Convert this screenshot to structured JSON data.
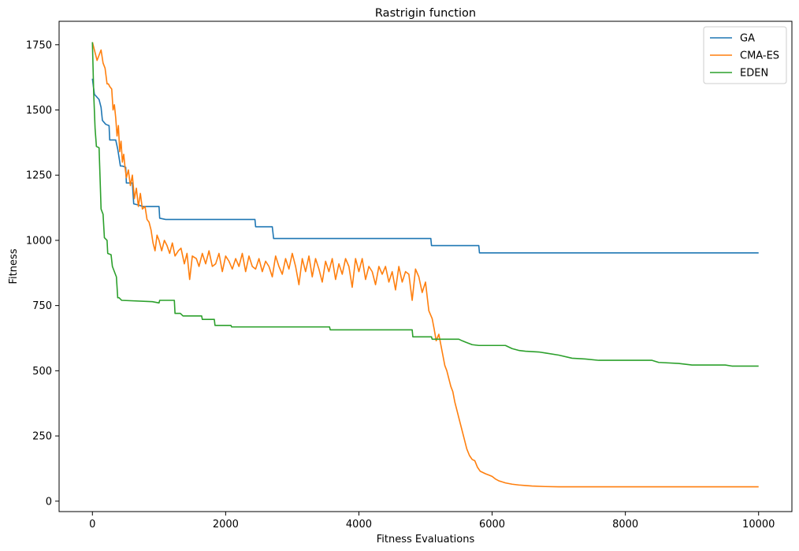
{
  "chart_data": {
    "type": "line",
    "title": "Rastrigin function",
    "xlabel": "Fitness Evaluations",
    "ylabel": "Fitness",
    "xlim": [
      -500,
      10500
    ],
    "ylim": [
      -40,
      1840
    ],
    "xticks": [
      0,
      2000,
      4000,
      6000,
      8000,
      10000
    ],
    "yticks": [
      0,
      250,
      500,
      750,
      1000,
      1250,
      1500,
      1750
    ],
    "grid": false,
    "legend_position": "top-right",
    "series": [
      {
        "name": "GA",
        "color": "#1f77b4",
        "step": true,
        "points": [
          [
            0,
            1620
          ],
          [
            30,
            1560
          ],
          [
            100,
            1540
          ],
          [
            130,
            1510
          ],
          [
            150,
            1460
          ],
          [
            200,
            1445
          ],
          [
            250,
            1440
          ],
          [
            260,
            1385
          ],
          [
            350,
            1385
          ],
          [
            380,
            1350
          ],
          [
            420,
            1285
          ],
          [
            450,
            1285
          ],
          [
            500,
            1280
          ],
          [
            510,
            1220
          ],
          [
            600,
            1220
          ],
          [
            620,
            1140
          ],
          [
            700,
            1135
          ],
          [
            750,
            1130
          ],
          [
            1000,
            1130
          ],
          [
            1010,
            1085
          ],
          [
            1100,
            1080
          ],
          [
            1300,
            1080
          ],
          [
            2440,
            1080
          ],
          [
            2450,
            1052
          ],
          [
            2700,
            1052
          ],
          [
            2720,
            1007
          ],
          [
            5080,
            1007
          ],
          [
            5090,
            980
          ],
          [
            5800,
            980
          ],
          [
            5810,
            952
          ],
          [
            10000,
            952
          ]
        ]
      },
      {
        "name": "CMA-ES",
        "color": "#ff7f0e",
        "step": false,
        "points": [
          [
            0,
            1760
          ],
          [
            40,
            1720
          ],
          [
            70,
            1690
          ],
          [
            100,
            1710
          ],
          [
            130,
            1730
          ],
          [
            160,
            1680
          ],
          [
            190,
            1660
          ],
          [
            220,
            1600
          ],
          [
            240,
            1600
          ],
          [
            260,
            1590
          ],
          [
            290,
            1580
          ],
          [
            310,
            1500
          ],
          [
            330,
            1520
          ],
          [
            350,
            1470
          ],
          [
            370,
            1400
          ],
          [
            390,
            1440
          ],
          [
            410,
            1340
          ],
          [
            430,
            1380
          ],
          [
            450,
            1300
          ],
          [
            470,
            1330
          ],
          [
            490,
            1280
          ],
          [
            510,
            1240
          ],
          [
            540,
            1270
          ],
          [
            570,
            1210
          ],
          [
            600,
            1250
          ],
          [
            630,
            1160
          ],
          [
            660,
            1200
          ],
          [
            690,
            1130
          ],
          [
            720,
            1180
          ],
          [
            750,
            1120
          ],
          [
            790,
            1130
          ],
          [
            820,
            1080
          ],
          [
            850,
            1070
          ],
          [
            880,
            1040
          ],
          [
            910,
            990
          ],
          [
            940,
            960
          ],
          [
            970,
            1020
          ],
          [
            1000,
            1000
          ],
          [
            1040,
            960
          ],
          [
            1080,
            1000
          ],
          [
            1120,
            980
          ],
          [
            1160,
            950
          ],
          [
            1200,
            990
          ],
          [
            1240,
            940
          ],
          [
            1290,
            960
          ],
          [
            1330,
            970
          ],
          [
            1380,
            910
          ],
          [
            1420,
            950
          ],
          [
            1460,
            850
          ],
          [
            1500,
            940
          ],
          [
            1560,
            930
          ],
          [
            1600,
            900
          ],
          [
            1650,
            950
          ],
          [
            1700,
            910
          ],
          [
            1750,
            960
          ],
          [
            1800,
            900
          ],
          [
            1850,
            910
          ],
          [
            1900,
            950
          ],
          [
            1950,
            880
          ],
          [
            2000,
            940
          ],
          [
            2050,
            920
          ],
          [
            2100,
            890
          ],
          [
            2150,
            930
          ],
          [
            2200,
            900
          ],
          [
            2250,
            950
          ],
          [
            2300,
            880
          ],
          [
            2350,
            940
          ],
          [
            2400,
            900
          ],
          [
            2450,
            890
          ],
          [
            2500,
            930
          ],
          [
            2550,
            880
          ],
          [
            2600,
            920
          ],
          [
            2650,
            900
          ],
          [
            2700,
            860
          ],
          [
            2750,
            940
          ],
          [
            2800,
            900
          ],
          [
            2850,
            870
          ],
          [
            2900,
            930
          ],
          [
            2950,
            890
          ],
          [
            3000,
            950
          ],
          [
            3050,
            900
          ],
          [
            3100,
            830
          ],
          [
            3150,
            930
          ],
          [
            3200,
            880
          ],
          [
            3250,
            940
          ],
          [
            3300,
            860
          ],
          [
            3350,
            930
          ],
          [
            3400,
            890
          ],
          [
            3450,
            840
          ],
          [
            3500,
            920
          ],
          [
            3550,
            880
          ],
          [
            3600,
            930
          ],
          [
            3650,
            850
          ],
          [
            3700,
            910
          ],
          [
            3750,
            870
          ],
          [
            3800,
            930
          ],
          [
            3850,
            900
          ],
          [
            3900,
            820
          ],
          [
            3950,
            930
          ],
          [
            4000,
            880
          ],
          [
            4050,
            930
          ],
          [
            4100,
            850
          ],
          [
            4150,
            900
          ],
          [
            4200,
            880
          ],
          [
            4250,
            830
          ],
          [
            4300,
            900
          ],
          [
            4350,
            870
          ],
          [
            4400,
            900
          ],
          [
            4450,
            840
          ],
          [
            4500,
            880
          ],
          [
            4550,
            810
          ],
          [
            4600,
            900
          ],
          [
            4650,
            840
          ],
          [
            4700,
            880
          ],
          [
            4750,
            870
          ],
          [
            4800,
            770
          ],
          [
            4850,
            890
          ],
          [
            4900,
            860
          ],
          [
            4950,
            800
          ],
          [
            5000,
            840
          ],
          [
            5050,
            730
          ],
          [
            5100,
            700
          ],
          [
            5130,
            660
          ],
          [
            5160,
            615
          ],
          [
            5200,
            640
          ],
          [
            5230,
            600
          ],
          [
            5260,
            560
          ],
          [
            5290,
            520
          ],
          [
            5320,
            500
          ],
          [
            5350,
            470
          ],
          [
            5380,
            440
          ],
          [
            5410,
            420
          ],
          [
            5440,
            380
          ],
          [
            5470,
            350
          ],
          [
            5500,
            320
          ],
          [
            5540,
            280
          ],
          [
            5580,
            240
          ],
          [
            5620,
            200
          ],
          [
            5660,
            175
          ],
          [
            5700,
            160
          ],
          [
            5740,
            155
          ],
          [
            5780,
            130
          ],
          [
            5820,
            115
          ],
          [
            5860,
            110
          ],
          [
            5900,
            105
          ],
          [
            5950,
            100
          ],
          [
            6000,
            95
          ],
          [
            6050,
            85
          ],
          [
            6100,
            78
          ],
          [
            6200,
            70
          ],
          [
            6300,
            65
          ],
          [
            6400,
            62
          ],
          [
            6500,
            60
          ],
          [
            6600,
            58
          ],
          [
            6800,
            56
          ],
          [
            7000,
            55
          ],
          [
            7500,
            55
          ],
          [
            8000,
            55
          ],
          [
            9000,
            55
          ],
          [
            10000,
            55
          ]
        ]
      },
      {
        "name": "EDEN",
        "color": "#2ca02c",
        "step": true,
        "points": [
          [
            0,
            1760
          ],
          [
            20,
            1560
          ],
          [
            40,
            1430
          ],
          [
            60,
            1360
          ],
          [
            100,
            1355
          ],
          [
            120,
            1200
          ],
          [
            130,
            1120
          ],
          [
            160,
            1100
          ],
          [
            180,
            1010
          ],
          [
            220,
            1000
          ],
          [
            230,
            950
          ],
          [
            280,
            945
          ],
          [
            300,
            900
          ],
          [
            330,
            880
          ],
          [
            360,
            860
          ],
          [
            380,
            780
          ],
          [
            400,
            780
          ],
          [
            440,
            770
          ],
          [
            900,
            765
          ],
          [
            1000,
            760
          ],
          [
            1010,
            770
          ],
          [
            1230,
            770
          ],
          [
            1240,
            720
          ],
          [
            1320,
            720
          ],
          [
            1360,
            710
          ],
          [
            1640,
            710
          ],
          [
            1650,
            697
          ],
          [
            1830,
            697
          ],
          [
            1840,
            674
          ],
          [
            2000,
            674
          ],
          [
            2080,
            674
          ],
          [
            2090,
            668
          ],
          [
            2200,
            668
          ],
          [
            3560,
            668
          ],
          [
            3570,
            657
          ],
          [
            4800,
            657
          ],
          [
            4810,
            630
          ],
          [
            5090,
            630
          ],
          [
            5100,
            621
          ],
          [
            5500,
            621
          ],
          [
            5550,
            615
          ],
          [
            5600,
            610
          ],
          [
            5700,
            600
          ],
          [
            5800,
            597
          ],
          [
            6000,
            597
          ],
          [
            6200,
            597
          ],
          [
            6300,
            585
          ],
          [
            6400,
            578
          ],
          [
            6500,
            575
          ],
          [
            6700,
            572
          ],
          [
            6800,
            568
          ],
          [
            7000,
            560
          ],
          [
            7200,
            548
          ],
          [
            7400,
            545
          ],
          [
            7600,
            540
          ],
          [
            8400,
            540
          ],
          [
            8500,
            532
          ],
          [
            8800,
            528
          ],
          [
            9000,
            522
          ],
          [
            9500,
            522
          ],
          [
            9600,
            518
          ],
          [
            10000,
            518
          ]
        ]
      }
    ]
  }
}
